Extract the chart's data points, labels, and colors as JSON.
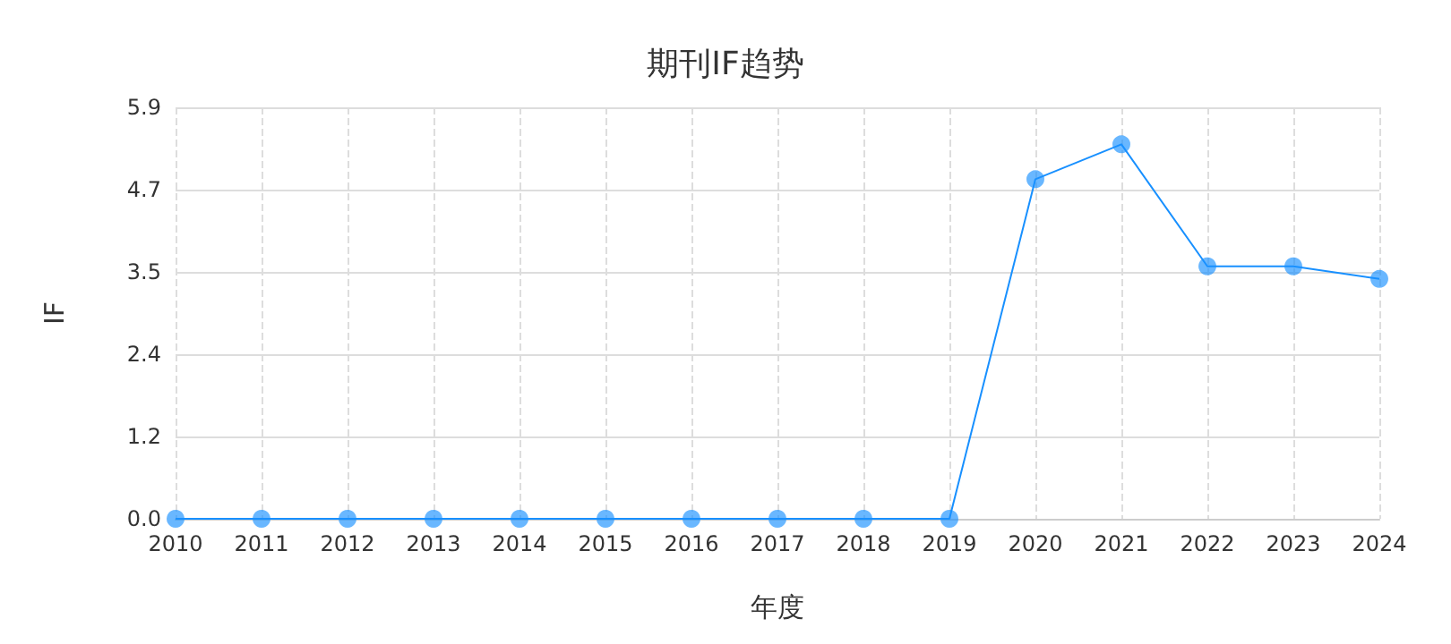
{
  "chart_data": {
    "type": "line",
    "title": "期刊IF趋势",
    "xlabel": "年度",
    "ylabel": "IF",
    "categories": [
      "2010",
      "2011",
      "2012",
      "2013",
      "2014",
      "2015",
      "2016",
      "2017",
      "2018",
      "2019",
      "2020",
      "2021",
      "2022",
      "2023",
      "2024"
    ],
    "series": [
      {
        "color": "#1890ff",
        "values": [
          0,
          0,
          0,
          0,
          0,
          0,
          0,
          0,
          0,
          0,
          4.87,
          5.37,
          3.62,
          3.62,
          3.44
        ]
      }
    ],
    "ylim": [
      0,
      5.9
    ],
    "yticks": [
      {
        "value": 0,
        "label": "0.0"
      },
      {
        "value": 1.18,
        "label": "1.2"
      },
      {
        "value": 2.36,
        "label": "2.4"
      },
      {
        "value": 3.54,
        "label": "3.5"
      },
      {
        "value": 4.72,
        "label": "4.7"
      },
      {
        "value": 5.9,
        "label": "5.9"
      }
    ],
    "grid": true,
    "marker": "circle",
    "line_style": "solid"
  }
}
